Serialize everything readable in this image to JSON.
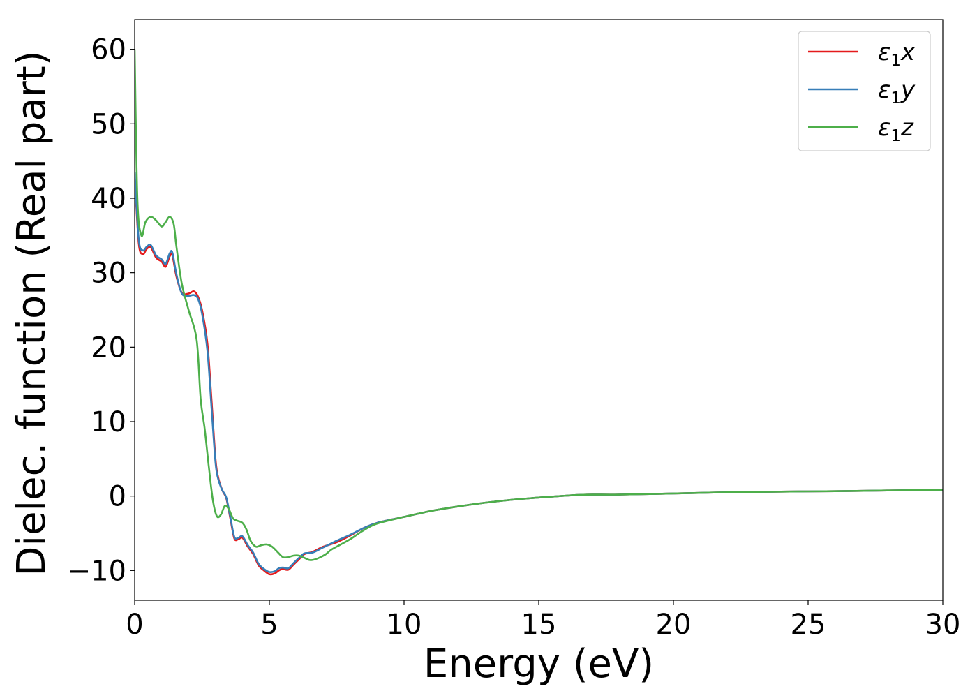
{
  "chart_data": {
    "type": "line",
    "xlabel": "Energy (eV)",
    "ylabel": "Dielec. function (Real part)",
    "xlim": [
      0,
      30
    ],
    "ylim": [
      -14,
      64
    ],
    "xticks": [
      0,
      5,
      10,
      15,
      20,
      25,
      30
    ],
    "yticks": [
      -10,
      0,
      10,
      20,
      30,
      40,
      50,
      60
    ],
    "xtick_labels": [
      "0",
      "5",
      "10",
      "15",
      "20",
      "25",
      "30"
    ],
    "ytick_labels": [
      "−10",
      "0",
      "10",
      "20",
      "30",
      "40",
      "50",
      "60"
    ],
    "grid": false,
    "legend_position": "top-right",
    "series": [
      {
        "name": "ε₁x",
        "legend_base": "ε",
        "legend_sub": "1",
        "legend_var": "x",
        "color": "#e41a1c",
        "x": [
          0,
          0.15,
          0.3,
          0.45,
          0.6,
          0.8,
          1.0,
          1.15,
          1.3,
          1.4,
          1.55,
          1.75,
          2.0,
          2.2,
          2.35,
          2.5,
          2.7,
          2.85,
          3.0,
          3.1,
          3.25,
          3.4,
          3.55,
          3.7,
          3.85,
          4.0,
          4.2,
          4.4,
          4.6,
          4.8,
          5.0,
          5.2,
          5.35,
          5.5,
          5.7,
          5.9,
          6.1,
          6.3,
          6.6,
          7.0,
          7.5,
          8.0,
          8.5,
          9.0,
          10.0,
          11.0,
          12.0,
          13.0,
          14.0,
          15.0,
          16.0,
          16.5,
          17.0,
          18.0,
          20.0,
          22.0,
          24.0,
          26.0,
          28.0,
          30.0
        ],
        "y": [
          43,
          34,
          32.5,
          33.2,
          33.4,
          32,
          31.5,
          30.8,
          32.2,
          32.3,
          29.5,
          27.3,
          27.2,
          27.5,
          26.8,
          25,
          20.5,
          13,
          5,
          2.5,
          0.8,
          -0.3,
          -3,
          -5.7,
          -5.8,
          -5.6,
          -6.8,
          -7.8,
          -9.3,
          -10,
          -10.5,
          -10.4,
          -10,
          -9.8,
          -9.9,
          -9.2,
          -8.5,
          -7.8,
          -7.5,
          -6.8,
          -6.2,
          -5.3,
          -4.3,
          -3.6,
          -2.8,
          -2,
          -1.4,
          -0.9,
          -0.5,
          -0.2,
          0.05,
          0.15,
          0.2,
          0.2,
          0.35,
          0.5,
          0.6,
          0.65,
          0.75,
          0.85
        ]
      },
      {
        "name": "ε₁y",
        "legend_base": "ε",
        "legend_sub": "1",
        "legend_var": "y",
        "color": "#377eb8",
        "x": [
          0,
          0.15,
          0.3,
          0.45,
          0.6,
          0.8,
          1.0,
          1.15,
          1.3,
          1.4,
          1.55,
          1.75,
          2.0,
          2.2,
          2.35,
          2.5,
          2.7,
          2.85,
          3.0,
          3.1,
          3.25,
          3.4,
          3.55,
          3.7,
          3.85,
          4.0,
          4.2,
          4.4,
          4.6,
          4.8,
          5.0,
          5.2,
          5.35,
          5.5,
          5.7,
          5.9,
          6.1,
          6.3,
          6.6,
          7.0,
          7.5,
          8.0,
          8.5,
          9.0,
          10.0,
          11.0,
          12.0,
          13.0,
          14.0,
          15.0,
          16.0,
          16.5,
          17.0,
          18.0,
          20.0,
          22.0,
          24.0,
          26.0,
          28.0,
          30.0
        ],
        "y": [
          43.5,
          34.5,
          33,
          33.5,
          33.7,
          32.3,
          31.8,
          31.2,
          32.6,
          32.7,
          29.8,
          27.2,
          26.9,
          27,
          26.5,
          24.5,
          19.5,
          12,
          4.5,
          2.3,
          0.8,
          -0.2,
          -2.8,
          -5.5,
          -5.6,
          -5.4,
          -6.6,
          -7.6,
          -9.1,
          -9.8,
          -10.2,
          -10.1,
          -9.7,
          -9.6,
          -9.7,
          -9.0,
          -8.3,
          -7.7,
          -7.6,
          -6.9,
          -6.0,
          -5.2,
          -4.3,
          -3.6,
          -2.8,
          -2,
          -1.4,
          -0.9,
          -0.5,
          -0.2,
          0.05,
          0.15,
          0.2,
          0.2,
          0.35,
          0.5,
          0.6,
          0.65,
          0.75,
          0.85
        ]
      },
      {
        "name": "ε₁z",
        "legend_base": "ε",
        "legend_sub": "1",
        "legend_var": "z",
        "color": "#4daf4a",
        "x": [
          0,
          0.1,
          0.25,
          0.4,
          0.6,
          0.8,
          1.0,
          1.15,
          1.3,
          1.45,
          1.55,
          1.75,
          2.0,
          2.3,
          2.45,
          2.6,
          2.75,
          2.9,
          3.05,
          3.2,
          3.35,
          3.5,
          3.65,
          3.8,
          4.0,
          4.15,
          4.3,
          4.5,
          4.7,
          4.9,
          5.1,
          5.3,
          5.5,
          5.7,
          5.9,
          6.1,
          6.3,
          6.5,
          6.7,
          6.9,
          7.1,
          7.3,
          7.6,
          8.0,
          8.5,
          9.0,
          10.0,
          11.0,
          12.0,
          13.0,
          14.0,
          15.0,
          16.0,
          16.5,
          17.0,
          18.0,
          20.0,
          22.0,
          24.0,
          26.0,
          28.0,
          30.0
        ],
        "y": [
          60,
          40,
          35,
          36.8,
          37.5,
          37,
          36.2,
          36.8,
          37.5,
          36.5,
          33.5,
          28.5,
          25,
          21,
          13,
          9,
          4,
          -0.5,
          -2.7,
          -2.5,
          -1.3,
          -1.8,
          -3,
          -3.3,
          -3.6,
          -4.5,
          -6,
          -6.8,
          -6.6,
          -6.5,
          -6.8,
          -7.5,
          -8.2,
          -8.2,
          -8,
          -8,
          -8.3,
          -8.6,
          -8.5,
          -8.2,
          -7.8,
          -7.2,
          -6.6,
          -5.8,
          -4.6,
          -3.7,
          -2.8,
          -2,
          -1.4,
          -0.9,
          -0.5,
          -0.2,
          0.05,
          0.15,
          0.2,
          0.2,
          0.35,
          0.5,
          0.6,
          0.65,
          0.75,
          0.85
        ]
      }
    ]
  }
}
